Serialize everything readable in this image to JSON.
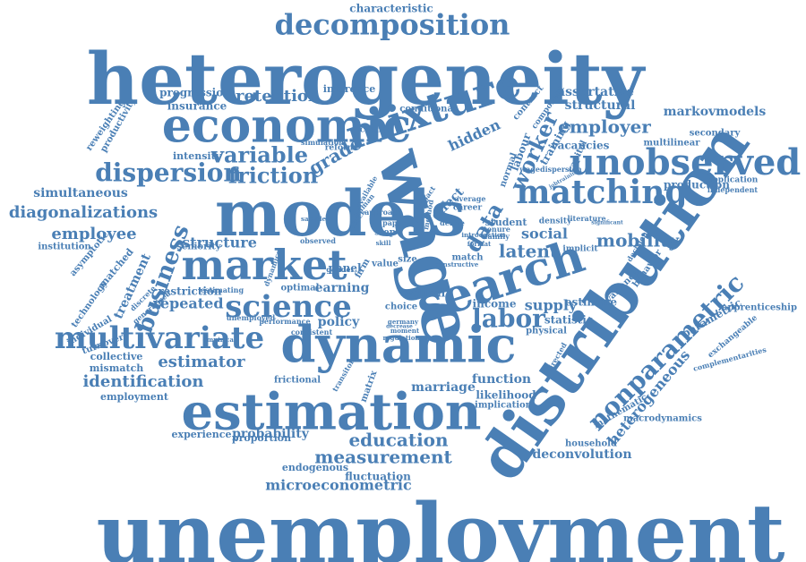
{
  "colors": {
    "word": "#4a7fb5",
    "background": "#ffffff"
  },
  "words": [
    "unemployment",
    "heterogeneity",
    "distribution",
    "models",
    "wage",
    "economic",
    "search",
    "estimation",
    "dynamic",
    "market",
    "mixture",
    "decomposition",
    "unobserved",
    "matching",
    "nonparametric",
    "multivariate",
    "science",
    "labor",
    "dispersion",
    "friction",
    "variable",
    "business",
    "worker",
    "employer",
    "education",
    "measurement",
    "microeconometric",
    "diagonalizations",
    "identification",
    "estimator",
    "data",
    "hidden",
    "latent",
    "characteristic",
    "retention",
    "mobility",
    "employee",
    "heterogeneous",
    "structure",
    "supply",
    "social",
    "grade",
    "repeated",
    "treatment",
    "structural",
    "markovmodels",
    "assortative",
    "probability",
    "simultaneous",
    "effect",
    "vacancies",
    "production",
    "deconvolution",
    "statistic",
    "estimate",
    "parametric",
    "policy",
    "income",
    "earning",
    "panel",
    "function",
    "marriage",
    "likelihood",
    "fluctuation",
    "endogenous",
    "proportion",
    "experience",
    "employment",
    "mismatch",
    "collective",
    "turnover",
    "individual",
    "technology",
    "matched",
    "asymptotic",
    "institution",
    "productivity",
    "reweighting",
    "progression",
    "insurance",
    "intensity",
    "simulation",
    "reform",
    "change",
    "labour",
    "training",
    "capital",
    "contract",
    "component",
    "multilinear",
    "secondary",
    "application",
    "independent",
    "apprenticeship",
    "exchangeable",
    "complementarities",
    "macrodynamics",
    "household",
    "mathematic",
    "behavior",
    "variance",
    "decision",
    "implicit",
    "density",
    "literature",
    "student",
    "tenure",
    "family",
    "career",
    "average",
    "normal",
    "inference",
    "conditional",
    "seniority",
    "restriction",
    "estimating",
    "optimal",
    "frictional",
    "matrix",
    "cyclical",
    "choice",
    "physical",
    "implication",
    "directed",
    "firm",
    "step",
    "value",
    "size",
    "match",
    "observed",
    "gender",
    "unemployed",
    "performance",
    "consistent",
    "transitory",
    "moment",
    "germany",
    "decrease",
    "regulation",
    "constructive",
    "discrete",
    "generalized",
    "empirical",
    "wagedispersion",
    "jobtraining",
    "significant",
    "introduction",
    "approach",
    "paper",
    "skill",
    "stock",
    "human",
    "available",
    "impact",
    "method",
    "format",
    "derive",
    "sample",
    "dynamics",
    "provide",
    "aggregate"
  ]
}
